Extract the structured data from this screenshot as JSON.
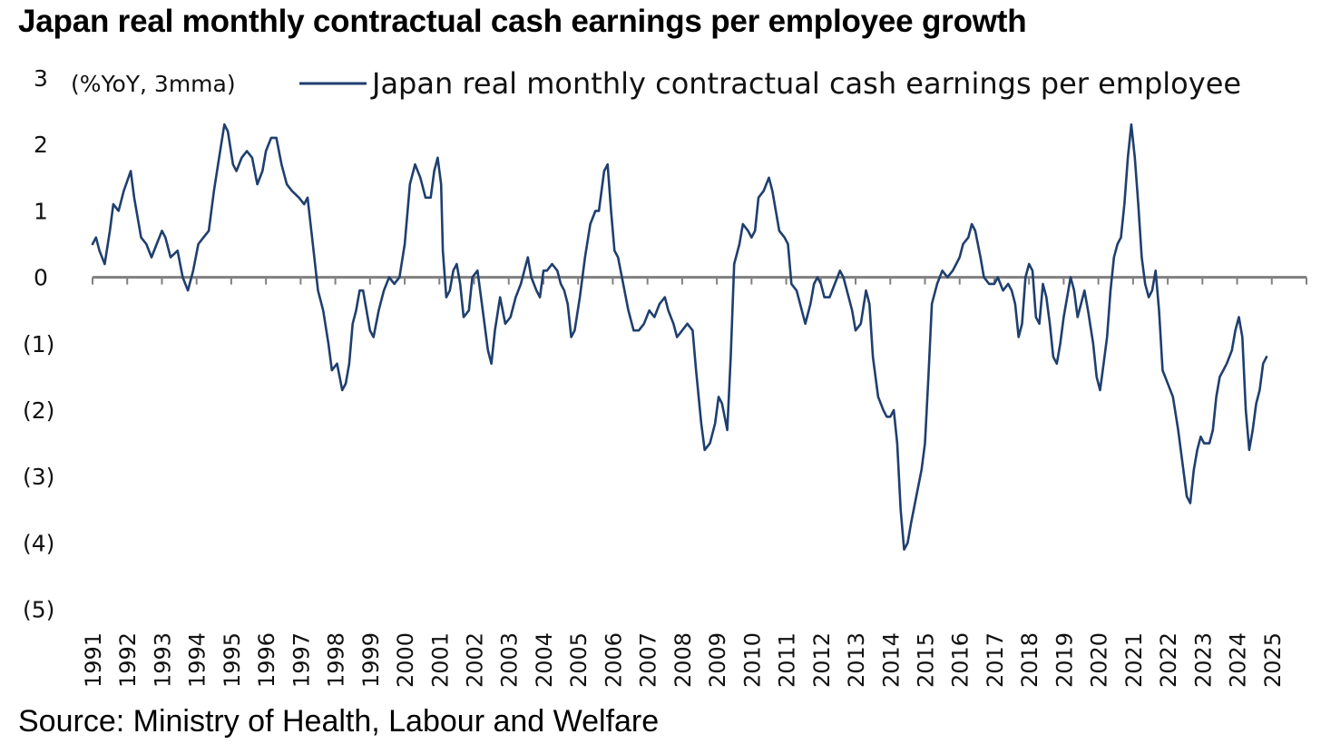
{
  "title": "Japan real monthly contractual cash earnings per employee growth",
  "source": "Source: Ministry of Health, Labour and Welfare",
  "chart_data": {
    "type": "line",
    "title": "Japan real monthly contractual cash earnings per employee growth",
    "unit_label": "(%YoY, 3mma)",
    "xlabel": "",
    "ylabel": "(%YoY, 3mma)",
    "ylim": [
      -5,
      3
    ],
    "y_ticks": [
      3,
      2,
      1,
      0,
      -1,
      -2,
      -3,
      -4,
      -5
    ],
    "y_tick_labels": [
      "3",
      "2",
      "1",
      "0",
      "(1)",
      "(2)",
      "(3)",
      "(4)",
      "(5)"
    ],
    "x_ticks": [
      "1991",
      "1992",
      "1993",
      "1994",
      "1995",
      "1996",
      "1997",
      "1998",
      "1999",
      "2000",
      "2001",
      "2002",
      "2003",
      "2004",
      "2005",
      "2006",
      "2007",
      "2008",
      "2009",
      "2010",
      "2011",
      "2012",
      "2013",
      "2014",
      "2015",
      "2016",
      "2017",
      "2018",
      "2019",
      "2020",
      "2021",
      "2022",
      "2023",
      "2024",
      "2025"
    ],
    "legend_position": "top",
    "colors": {
      "series": "#1f3f6e",
      "axis": "#808080"
    },
    "series": [
      {
        "name": "Japan real monthly contractual cash earnings per employee",
        "points": [
          [
            1991.0,
            0.5
          ],
          [
            1991.1,
            0.6
          ],
          [
            1991.2,
            0.4
          ],
          [
            1991.35,
            0.2
          ],
          [
            1991.5,
            0.7
          ],
          [
            1991.6,
            1.1
          ],
          [
            1991.75,
            1.0
          ],
          [
            1991.9,
            1.3
          ],
          [
            1992.1,
            1.6
          ],
          [
            1992.2,
            1.2
          ],
          [
            1992.4,
            0.6
          ],
          [
            1992.55,
            0.5
          ],
          [
            1992.7,
            0.3
          ],
          [
            1992.85,
            0.5
          ],
          [
            1993.0,
            0.7
          ],
          [
            1993.1,
            0.6
          ],
          [
            1993.25,
            0.3
          ],
          [
            1993.45,
            0.4
          ],
          [
            1993.6,
            0.0
          ],
          [
            1993.75,
            -0.2
          ],
          [
            1993.9,
            0.1
          ],
          [
            1994.05,
            0.5
          ],
          [
            1994.2,
            0.6
          ],
          [
            1994.35,
            0.7
          ],
          [
            1994.5,
            1.3
          ],
          [
            1994.65,
            1.8
          ],
          [
            1994.8,
            2.3
          ],
          [
            1994.9,
            2.2
          ],
          [
            1995.05,
            1.7
          ],
          [
            1995.15,
            1.6
          ],
          [
            1995.3,
            1.8
          ],
          [
            1995.45,
            1.9
          ],
          [
            1995.6,
            1.8
          ],
          [
            1995.75,
            1.4
          ],
          [
            1995.9,
            1.6
          ],
          [
            1996.0,
            1.9
          ],
          [
            1996.15,
            2.1
          ],
          [
            1996.3,
            2.1
          ],
          [
            1996.45,
            1.7
          ],
          [
            1996.6,
            1.4
          ],
          [
            1996.75,
            1.3
          ],
          [
            1996.95,
            1.2
          ],
          [
            1997.1,
            1.1
          ],
          [
            1997.2,
            1.2
          ],
          [
            1997.35,
            0.5
          ],
          [
            1997.5,
            -0.2
          ],
          [
            1997.65,
            -0.5
          ],
          [
            1997.8,
            -1.0
          ],
          [
            1997.9,
            -1.4
          ],
          [
            1998.05,
            -1.3
          ],
          [
            1998.2,
            -1.7
          ],
          [
            1998.3,
            -1.6
          ],
          [
            1998.4,
            -1.3
          ],
          [
            1998.5,
            -0.7
          ],
          [
            1998.6,
            -0.5
          ],
          [
            1998.7,
            -0.2
          ],
          [
            1998.8,
            -0.2
          ],
          [
            1998.9,
            -0.5
          ],
          [
            1999.0,
            -0.8
          ],
          [
            1999.1,
            -0.9
          ],
          [
            1999.25,
            -0.5
          ],
          [
            1999.4,
            -0.2
          ],
          [
            1999.55,
            0.0
          ],
          [
            1999.7,
            -0.1
          ],
          [
            1999.85,
            0.0
          ],
          [
            2000.0,
            0.5
          ],
          [
            2000.15,
            1.4
          ],
          [
            2000.3,
            1.7
          ],
          [
            2000.45,
            1.5
          ],
          [
            2000.6,
            1.2
          ],
          [
            2000.75,
            1.2
          ],
          [
            2000.85,
            1.6
          ],
          [
            2000.95,
            1.8
          ],
          [
            2001.05,
            1.4
          ],
          [
            2001.1,
            0.4
          ],
          [
            2001.2,
            -0.3
          ],
          [
            2001.3,
            -0.2
          ],
          [
            2001.4,
            0.1
          ],
          [
            2001.5,
            0.2
          ],
          [
            2001.6,
            -0.1
          ],
          [
            2001.7,
            -0.6
          ],
          [
            2001.85,
            -0.5
          ],
          [
            2001.95,
            0.0
          ],
          [
            2002.1,
            0.1
          ],
          [
            2002.25,
            -0.5
          ],
          [
            2002.4,
            -1.1
          ],
          [
            2002.5,
            -1.3
          ],
          [
            2002.6,
            -0.8
          ],
          [
            2002.75,
            -0.3
          ],
          [
            2002.9,
            -0.7
          ],
          [
            2003.05,
            -0.6
          ],
          [
            2003.2,
            -0.3
          ],
          [
            2003.35,
            -0.1
          ],
          [
            2003.45,
            0.1
          ],
          [
            2003.55,
            0.3
          ],
          [
            2003.65,
            0.0
          ],
          [
            2003.8,
            -0.2
          ],
          [
            2003.9,
            -0.3
          ],
          [
            2004.0,
            0.1
          ],
          [
            2004.1,
            0.1
          ],
          [
            2004.25,
            0.2
          ],
          [
            2004.4,
            0.1
          ],
          [
            2004.5,
            -0.1
          ],
          [
            2004.6,
            -0.2
          ],
          [
            2004.7,
            -0.4
          ],
          [
            2004.8,
            -0.9
          ],
          [
            2004.9,
            -0.8
          ],
          [
            2005.05,
            -0.3
          ],
          [
            2005.2,
            0.3
          ],
          [
            2005.35,
            0.8
          ],
          [
            2005.5,
            1.0
          ],
          [
            2005.6,
            1.0
          ],
          [
            2005.75,
            1.6
          ],
          [
            2005.85,
            1.7
          ],
          [
            2005.95,
            1.0
          ],
          [
            2006.05,
            0.4
          ],
          [
            2006.15,
            0.3
          ],
          [
            2006.3,
            -0.1
          ],
          [
            2006.45,
            -0.5
          ],
          [
            2006.6,
            -0.8
          ],
          [
            2006.75,
            -0.8
          ],
          [
            2006.9,
            -0.7
          ],
          [
            2007.05,
            -0.5
          ],
          [
            2007.2,
            -0.6
          ],
          [
            2007.35,
            -0.4
          ],
          [
            2007.5,
            -0.3
          ],
          [
            2007.6,
            -0.5
          ],
          [
            2007.75,
            -0.7
          ],
          [
            2007.85,
            -0.9
          ],
          [
            2008.0,
            -0.8
          ],
          [
            2008.15,
            -0.7
          ],
          [
            2008.3,
            -0.8
          ],
          [
            2008.4,
            -1.4
          ],
          [
            2008.55,
            -2.2
          ],
          [
            2008.65,
            -2.6
          ],
          [
            2008.8,
            -2.5
          ],
          [
            2008.95,
            -2.2
          ],
          [
            2009.05,
            -1.8
          ],
          [
            2009.15,
            -1.9
          ],
          [
            2009.3,
            -2.3
          ],
          [
            2009.4,
            -1.2
          ],
          [
            2009.5,
            0.2
          ],
          [
            2009.65,
            0.5
          ],
          [
            2009.75,
            0.8
          ],
          [
            2009.9,
            0.7
          ],
          [
            2010.0,
            0.6
          ],
          [
            2010.1,
            0.7
          ],
          [
            2010.2,
            1.2
          ],
          [
            2010.35,
            1.3
          ],
          [
            2010.5,
            1.5
          ],
          [
            2010.6,
            1.3
          ],
          [
            2010.7,
            1.0
          ],
          [
            2010.8,
            0.7
          ],
          [
            2010.95,
            0.6
          ],
          [
            2011.05,
            0.5
          ],
          [
            2011.15,
            -0.1
          ],
          [
            2011.3,
            -0.2
          ],
          [
            2011.45,
            -0.5
          ],
          [
            2011.55,
            -0.7
          ],
          [
            2011.7,
            -0.4
          ],
          [
            2011.8,
            -0.1
          ],
          [
            2011.9,
            0.0
          ],
          [
            2012.0,
            -0.1
          ],
          [
            2012.1,
            -0.3
          ],
          [
            2012.25,
            -0.3
          ],
          [
            2012.4,
            -0.1
          ],
          [
            2012.55,
            0.1
          ],
          [
            2012.65,
            0.0
          ],
          [
            2012.8,
            -0.3
          ],
          [
            2012.9,
            -0.5
          ],
          [
            2013.0,
            -0.8
          ],
          [
            2013.15,
            -0.7
          ],
          [
            2013.3,
            -0.2
          ],
          [
            2013.4,
            -0.4
          ],
          [
            2013.5,
            -1.2
          ],
          [
            2013.65,
            -1.8
          ],
          [
            2013.8,
            -2.0
          ],
          [
            2013.9,
            -2.1
          ],
          [
            2014.0,
            -2.1
          ],
          [
            2014.1,
            -2.0
          ],
          [
            2014.2,
            -2.5
          ],
          [
            2014.3,
            -3.5
          ],
          [
            2014.4,
            -4.1
          ],
          [
            2014.5,
            -4.0
          ],
          [
            2014.6,
            -3.7
          ],
          [
            2014.75,
            -3.3
          ],
          [
            2014.9,
            -2.9
          ],
          [
            2015.0,
            -2.5
          ],
          [
            2015.1,
            -1.5
          ],
          [
            2015.2,
            -0.4
          ],
          [
            2015.35,
            -0.1
          ],
          [
            2015.5,
            0.1
          ],
          [
            2015.65,
            0.0
          ],
          [
            2015.8,
            0.1
          ],
          [
            2015.9,
            0.2
          ],
          [
            2016.0,
            0.3
          ],
          [
            2016.1,
            0.5
          ],
          [
            2016.25,
            0.6
          ],
          [
            2016.35,
            0.8
          ],
          [
            2016.45,
            0.7
          ],
          [
            2016.6,
            0.3
          ],
          [
            2016.7,
            0.0
          ],
          [
            2016.85,
            -0.1
          ],
          [
            2017.0,
            -0.1
          ],
          [
            2017.1,
            0.0
          ],
          [
            2017.25,
            -0.2
          ],
          [
            2017.4,
            -0.1
          ],
          [
            2017.5,
            -0.2
          ],
          [
            2017.6,
            -0.4
          ],
          [
            2017.7,
            -0.9
          ],
          [
            2017.8,
            -0.7
          ],
          [
            2017.9,
            0.0
          ],
          [
            2018.0,
            0.2
          ],
          [
            2018.1,
            0.1
          ],
          [
            2018.2,
            -0.6
          ],
          [
            2018.3,
            -0.7
          ],
          [
            2018.4,
            -0.1
          ],
          [
            2018.5,
            -0.3
          ],
          [
            2018.6,
            -0.7
          ],
          [
            2018.7,
            -1.2
          ],
          [
            2018.8,
            -1.3
          ],
          [
            2018.9,
            -1.0
          ],
          [
            2019.0,
            -0.6
          ],
          [
            2019.1,
            -0.3
          ],
          [
            2019.2,
            0.0
          ],
          [
            2019.3,
            -0.2
          ],
          [
            2019.4,
            -0.6
          ],
          [
            2019.5,
            -0.4
          ],
          [
            2019.6,
            -0.2
          ],
          [
            2019.7,
            -0.5
          ],
          [
            2019.85,
            -1.0
          ],
          [
            2019.95,
            -1.5
          ],
          [
            2020.05,
            -1.7
          ],
          [
            2020.15,
            -1.3
          ],
          [
            2020.25,
            -0.9
          ],
          [
            2020.35,
            -0.2
          ],
          [
            2020.45,
            0.3
          ],
          [
            2020.55,
            0.5
          ],
          [
            2020.65,
            0.6
          ],
          [
            2020.75,
            1.1
          ],
          [
            2020.85,
            1.8
          ],
          [
            2020.95,
            2.3
          ],
          [
            2021.05,
            1.8
          ],
          [
            2021.15,
            1.1
          ],
          [
            2021.25,
            0.3
          ],
          [
            2021.35,
            -0.1
          ],
          [
            2021.45,
            -0.3
          ],
          [
            2021.55,
            -0.2
          ],
          [
            2021.65,
            0.1
          ],
          [
            2021.75,
            -0.5
          ],
          [
            2021.85,
            -1.4
          ],
          [
            2022.0,
            -1.6
          ],
          [
            2022.15,
            -1.8
          ],
          [
            2022.3,
            -2.3
          ],
          [
            2022.45,
            -2.9
          ],
          [
            2022.55,
            -3.3
          ],
          [
            2022.65,
            -3.4
          ],
          [
            2022.75,
            -2.9
          ],
          [
            2022.85,
            -2.6
          ],
          [
            2022.95,
            -2.4
          ],
          [
            2023.05,
            -2.5
          ],
          [
            2023.2,
            -2.5
          ],
          [
            2023.3,
            -2.3
          ],
          [
            2023.4,
            -1.8
          ],
          [
            2023.5,
            -1.5
          ],
          [
            2023.6,
            -1.4
          ],
          [
            2023.7,
            -1.3
          ],
          [
            2023.85,
            -1.1
          ],
          [
            2023.95,
            -0.8
          ],
          [
            2024.05,
            -0.6
          ],
          [
            2024.15,
            -0.9
          ],
          [
            2024.25,
            -2.0
          ],
          [
            2024.35,
            -2.6
          ],
          [
            2024.45,
            -2.3
          ],
          [
            2024.55,
            -1.9
          ],
          [
            2024.65,
            -1.7
          ],
          [
            2024.75,
            -1.3
          ],
          [
            2024.85,
            -1.2
          ]
        ]
      }
    ]
  }
}
